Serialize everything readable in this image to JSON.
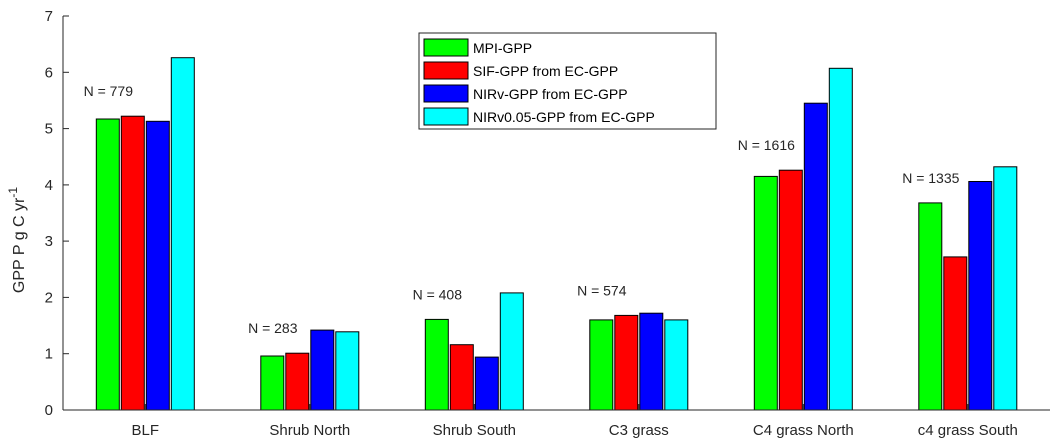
{
  "chart_data": {
    "type": "bar",
    "title": "",
    "xlabel": "",
    "ylabel": "GPP P g C yr",
    "ylabel_sup": "-1",
    "ylim": [
      0,
      7
    ],
    "yticks": [
      0,
      1,
      2,
      3,
      4,
      5,
      6,
      7
    ],
    "grid": false,
    "legend_position": "top-center",
    "categories": [
      "BLF",
      "Shrub North",
      "Shrub South",
      "C3 grass",
      "C4 grass North",
      "c4 grass South"
    ],
    "annotations": [
      "N = 779",
      "N = 283",
      "N = 408",
      "N = 574",
      "N = 1616",
      "N = 1335"
    ],
    "series": [
      {
        "name": "MPI-GPP",
        "color": "#00ff00",
        "values": [
          5.17,
          0.96,
          1.61,
          1.6,
          4.15,
          3.68
        ]
      },
      {
        "name": "SIF-GPP from EC-GPP",
        "color": "#ff0000",
        "values": [
          5.22,
          1.01,
          1.16,
          1.68,
          4.26,
          2.72
        ]
      },
      {
        "name": "NIRv-GPP from EC-GPP",
        "color": "#0000ff",
        "values": [
          5.13,
          1.42,
          0.94,
          1.72,
          5.45,
          4.06
        ]
      },
      {
        "name": "NIRv0.05-GPP from EC-GPP",
        "color": "#00ffff",
        "values": [
          6.26,
          1.39,
          2.08,
          1.6,
          6.07,
          4.32
        ]
      }
    ]
  }
}
